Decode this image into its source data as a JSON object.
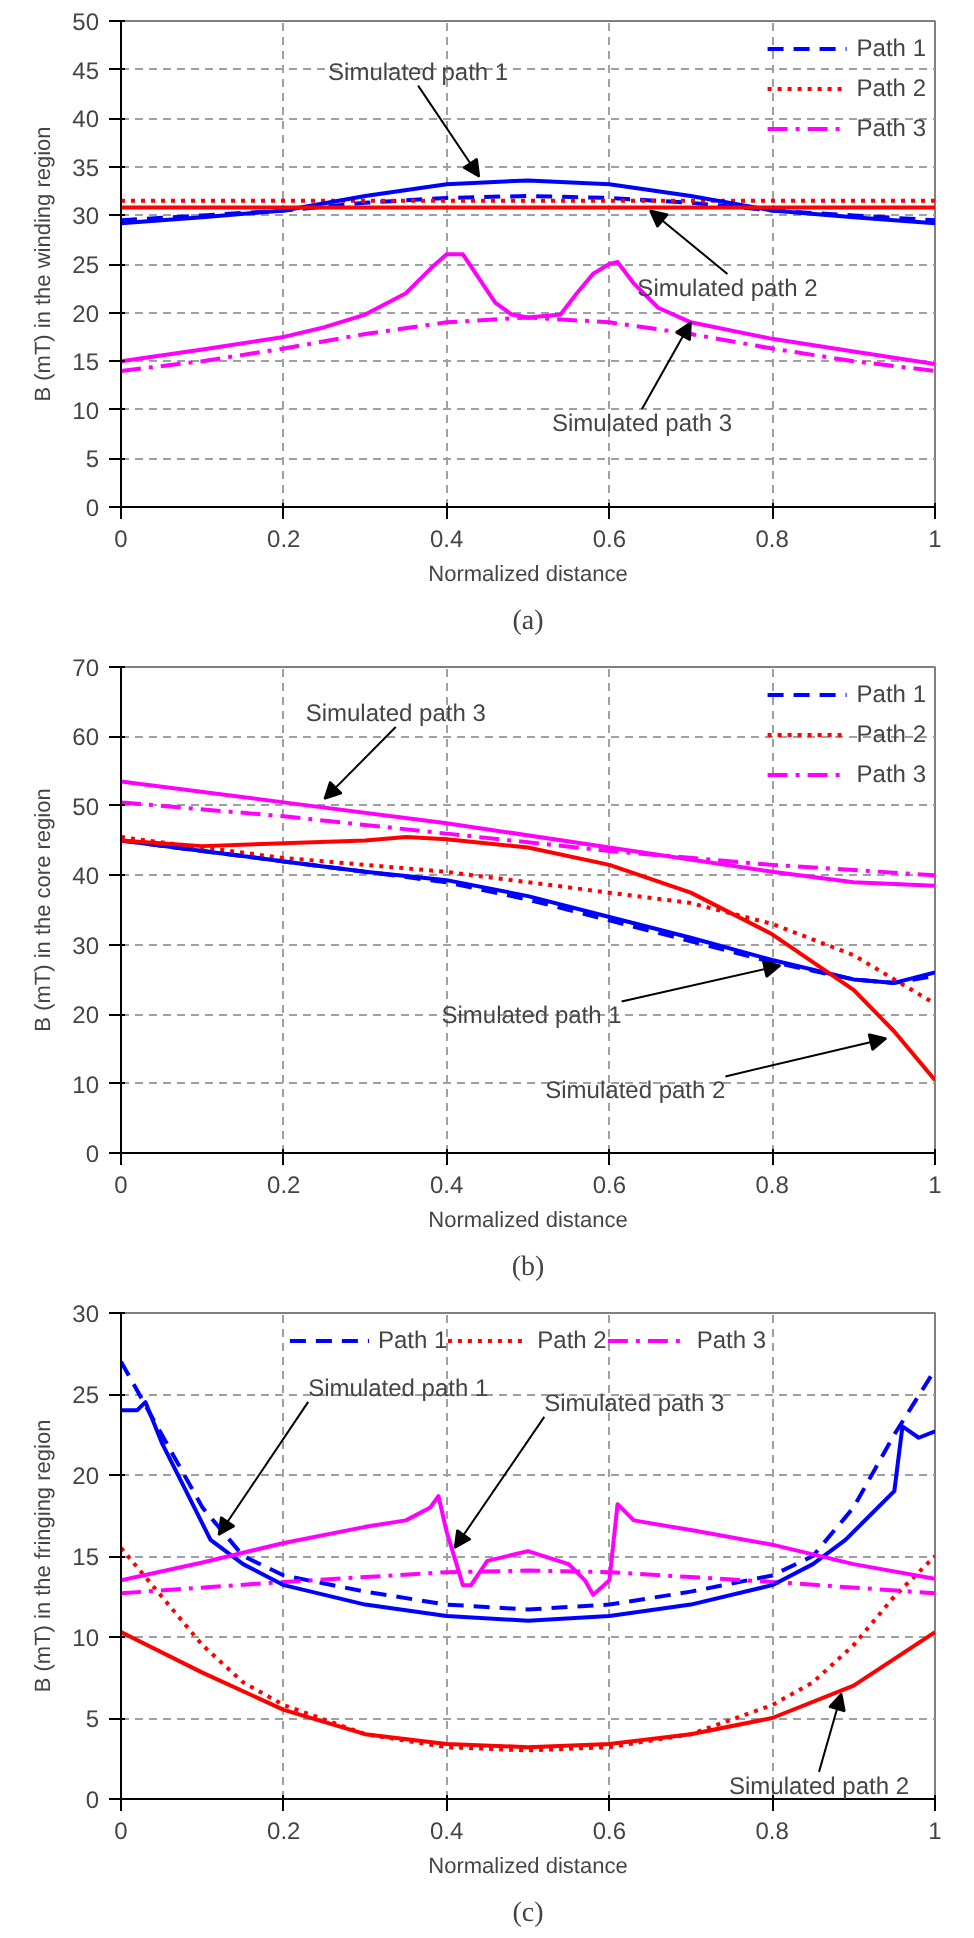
{
  "chart_data": [
    {
      "type": "line",
      "xlabel": "Normalized distance",
      "ylabel": "B (mT) in the winding region",
      "xlim": [
        0,
        1
      ],
      "ylim": [
        0,
        50
      ],
      "xticks": [
        0,
        0.2,
        0.4,
        0.6,
        0.8,
        1
      ],
      "yticks": [
        0,
        5,
        10,
        15,
        20,
        25,
        30,
        35,
        40,
        45,
        50
      ],
      "grid": true,
      "legend": "top right",
      "annotations": [
        "(a)",
        {
          "text": "Simulated path 1",
          "x": 0.44,
          "y": 34
        },
        {
          "text": "Simulated path 2",
          "x": 0.65,
          "y": 30.5
        },
        {
          "text": "Simulated path 3",
          "x": 0.7,
          "y": 19
        }
      ],
      "series": [
        {
          "name": "Path 1",
          "color": "#0000ff",
          "line_style": "dashed",
          "x": [
            0,
            0.1,
            0.2,
            0.3,
            0.4,
            0.5,
            0.6,
            0.7,
            0.8,
            0.9,
            1
          ],
          "values": [
            29.5,
            30,
            30.5,
            31.3,
            31.8,
            32,
            31.8,
            31.3,
            30.5,
            30,
            29.5
          ]
        },
        {
          "name": "Path 2",
          "color": "#ff0000",
          "line_style": "dotted",
          "x": [
            0,
            0.5,
            1
          ],
          "values": [
            31.5,
            31.5,
            31.5
          ]
        },
        {
          "name": "Path 3",
          "color": "#ff00ff",
          "line_style": "dashdot",
          "x": [
            0,
            0.1,
            0.2,
            0.3,
            0.4,
            0.5,
            0.6,
            0.7,
            0.8,
            0.9,
            1
          ],
          "values": [
            14,
            15,
            16.3,
            17.8,
            19,
            19.5,
            19,
            17.8,
            16.3,
            15,
            14
          ]
        },
        {
          "color": "#0000ff",
          "line_style": "solid",
          "x": [
            0,
            0.1,
            0.2,
            0.3,
            0.4,
            0.5,
            0.6,
            0.7,
            0.8,
            0.9,
            1
          ],
          "values": [
            29.2,
            29.8,
            30.5,
            32,
            33.2,
            33.6,
            33.2,
            32,
            30.5,
            29.8,
            29.2
          ]
        },
        {
          "color": "#ff0000",
          "line_style": "solid",
          "x": [
            0,
            0.5,
            1
          ],
          "values": [
            30.8,
            30.8,
            30.8
          ]
        },
        {
          "color": "#ff00ff",
          "line_style": "solid",
          "x": [
            0,
            0.1,
            0.2,
            0.25,
            0.3,
            0.35,
            0.38,
            0.4,
            0.42,
            0.44,
            0.46,
            0.48,
            0.5,
            0.54,
            0.56,
            0.58,
            0.6,
            0.61,
            0.63,
            0.66,
            0.7,
            0.8,
            0.9,
            1
          ],
          "values": [
            15,
            16.2,
            17.5,
            18.5,
            19.8,
            22,
            24.5,
            26,
            26,
            23.5,
            21,
            19.8,
            19.5,
            19.8,
            22,
            24,
            25,
            25.2,
            23,
            20.5,
            19,
            17.3,
            16,
            14.7
          ]
        }
      ]
    },
    {
      "type": "line",
      "xlabel": "Normalized distance",
      "ylabel": "B (mT) in the core region",
      "xlim": [
        0,
        1
      ],
      "ylim": [
        0,
        70
      ],
      "xticks": [
        0,
        0.2,
        0.4,
        0.6,
        0.8,
        1
      ],
      "yticks": [
        0,
        10,
        20,
        30,
        40,
        50,
        60,
        70
      ],
      "grid": true,
      "legend": "top right",
      "annotations": [
        "(b)",
        {
          "text": "Simulated path 3",
          "x": 0.25,
          "y": 51
        },
        {
          "text": "Simulated path 1",
          "x": 0.81,
          "y": 27
        },
        {
          "text": "Simulated path 2",
          "x": 0.94,
          "y": 16.5
        }
      ],
      "series": [
        {
          "name": "Path 1",
          "color": "#0000ff",
          "line_style": "dashed",
          "x": [
            0,
            0.1,
            0.2,
            0.3,
            0.4,
            0.5,
            0.6,
            0.7,
            0.8,
            0.9,
            0.95,
            1
          ],
          "values": [
            45,
            43.5,
            42,
            40.5,
            39,
            36.5,
            33.5,
            30.5,
            27.5,
            25,
            24.5,
            25.5
          ]
        },
        {
          "name": "Path 2",
          "color": "#ff0000",
          "line_style": "dotted",
          "x": [
            0,
            0.1,
            0.2,
            0.3,
            0.4,
            0.5,
            0.6,
            0.7,
            0.8,
            0.9,
            0.95,
            1
          ],
          "values": [
            45.5,
            44,
            42.5,
            41.5,
            40.5,
            39,
            37.5,
            36,
            33,
            28.5,
            25,
            21.5
          ]
        },
        {
          "name": "Path 3",
          "color": "#ff00ff",
          "line_style": "dashdot",
          "x": [
            0,
            0.2,
            0.4,
            0.6,
            0.8,
            1
          ],
          "values": [
            50.5,
            48.5,
            46,
            43.5,
            41.5,
            40
          ]
        },
        {
          "color": "#0000ff",
          "line_style": "solid",
          "x": [
            0,
            0.1,
            0.2,
            0.3,
            0.4,
            0.5,
            0.6,
            0.7,
            0.8,
            0.9,
            0.95,
            1
          ],
          "values": [
            45,
            43.5,
            42,
            40.5,
            39.3,
            37,
            34,
            31,
            27.8,
            25,
            24.5,
            26
          ]
        },
        {
          "color": "#ff0000",
          "line_style": "solid",
          "x": [
            0,
            0.1,
            0.2,
            0.3,
            0.35,
            0.4,
            0.5,
            0.6,
            0.7,
            0.8,
            0.9,
            0.95,
            1
          ],
          "values": [
            45,
            44.2,
            44.6,
            45,
            45.5,
            45.2,
            44,
            41.5,
            37.5,
            31.5,
            23.5,
            17.5,
            10.5
          ]
        },
        {
          "color": "#ff00ff",
          "line_style": "solid",
          "x": [
            0,
            0.2,
            0.4,
            0.6,
            0.8,
            0.9,
            1
          ],
          "values": [
            53.5,
            50.5,
            47.5,
            44,
            40.5,
            39,
            38.5
          ]
        }
      ]
    },
    {
      "type": "line",
      "xlabel": "Normalized distance",
      "ylabel": "B (mT) in the fringing region",
      "xlim": [
        0,
        1
      ],
      "ylim": [
        0,
        30
      ],
      "xticks": [
        0,
        0.2,
        0.4,
        0.6,
        0.8,
        1
      ],
      "yticks": [
        0,
        5,
        10,
        15,
        20,
        25,
        30
      ],
      "grid": true,
      "legend": "top",
      "annotations": [
        "(c)",
        {
          "text": "Simulated path 1",
          "x": 0.12,
          "y": 16.3
        },
        {
          "text": "Simulated path 3",
          "x": 0.41,
          "y": 15.5
        },
        {
          "text": "Simulated path 2",
          "x": 0.885,
          "y": 6.5
        }
      ],
      "series": [
        {
          "name": "Path 1",
          "color": "#0000ff",
          "line_style": "dashed",
          "x": [
            0,
            0.05,
            0.1,
            0.15,
            0.2,
            0.3,
            0.4,
            0.5,
            0.6,
            0.7,
            0.8,
            0.85,
            0.9,
            0.95,
            1
          ],
          "values": [
            27,
            22.5,
            18,
            15,
            13.8,
            12.8,
            12,
            11.7,
            12,
            12.8,
            13.8,
            15,
            18,
            22.5,
            26.5
          ]
        },
        {
          "name": "Path 2",
          "color": "#ff0000",
          "line_style": "dotted",
          "x": [
            0,
            0.05,
            0.1,
            0.15,
            0.2,
            0.3,
            0.4,
            0.5,
            0.6,
            0.7,
            0.8,
            0.85,
            0.9,
            0.95,
            1
          ],
          "values": [
            15.5,
            12.5,
            9.5,
            7.2,
            5.8,
            4,
            3.2,
            3,
            3.2,
            4,
            5.8,
            7.2,
            9.5,
            12.5,
            15
          ]
        },
        {
          "name": "Path 3",
          "color": "#ff00ff",
          "line_style": "dashdot",
          "x": [
            0,
            0.2,
            0.4,
            0.5,
            0.6,
            0.8,
            1
          ],
          "values": [
            12.7,
            13.4,
            14,
            14.1,
            14,
            13.4,
            12.7
          ]
        },
        {
          "color": "#0000ff",
          "line_style": "solid",
          "x": [
            0,
            0.02,
            0.03,
            0.05,
            0.08,
            0.11,
            0.15,
            0.2,
            0.3,
            0.4,
            0.5,
            0.6,
            0.7,
            0.8,
            0.85,
            0.89,
            0.92,
            0.95,
            0.96,
            0.98,
            1
          ],
          "values": [
            24,
            24,
            24.5,
            22,
            19,
            16,
            14.5,
            13.2,
            12,
            11.3,
            11,
            11.3,
            12,
            13.2,
            14.5,
            16,
            17.5,
            19,
            23,
            22.3,
            22.7
          ]
        },
        {
          "color": "#ff0000",
          "line_style": "solid",
          "x": [
            0,
            0.1,
            0.2,
            0.3,
            0.4,
            0.5,
            0.6,
            0.7,
            0.8,
            0.9,
            1
          ],
          "values": [
            10.3,
            7.8,
            5.5,
            4,
            3.4,
            3.2,
            3.4,
            4,
            5,
            7,
            10.3
          ]
        },
        {
          "color": "#ff00ff",
          "line_style": "solid",
          "x": [
            0,
            0.1,
            0.2,
            0.3,
            0.35,
            0.38,
            0.39,
            0.4,
            0.42,
            0.43,
            0.45,
            0.5,
            0.55,
            0.57,
            0.58,
            0.6,
            0.61,
            0.63,
            0.7,
            0.8,
            0.9,
            1
          ],
          "values": [
            13.5,
            14.6,
            15.8,
            16.8,
            17.2,
            18,
            18.7,
            16.5,
            13.2,
            13.2,
            14.7,
            15.3,
            14.5,
            13.5,
            12.6,
            13.5,
            18.2,
            17.2,
            16.6,
            15.7,
            14.5,
            13.6
          ]
        }
      ]
    }
  ]
}
